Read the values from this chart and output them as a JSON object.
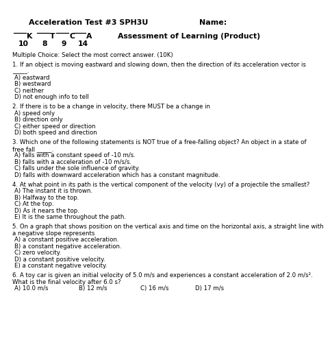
{
  "title1": "Acceleration Test #3 SPH3U",
  "title1_name": "Name:",
  "header_right": "Assessment of Learning (Product)",
  "ktca_labels": [
    "K",
    "T",
    "C",
    "A"
  ],
  "ktca_scores": [
    "10",
    "8",
    "9",
    "14"
  ],
  "mc_header": "Multiple Choice: Select the most correct answer. (10K)",
  "questions": [
    {
      "num": "1.",
      "text": "If an object is moving eastward and slowing down, then the direction of its acceleration vector is\n_____.",
      "choices": [
        "A) eastward",
        "B) westward",
        "C) neither",
        "D) not enough info to tell"
      ]
    },
    {
      "num": "2.",
      "text": "If there is to be a change in velocity, there MUST be a change in",
      "choices": [
        "A) speed only",
        "B) direction only",
        "C) either speed or direction",
        "D) both speed and direction"
      ]
    },
    {
      "num": "3.",
      "text": "Which one of the following statements is NOT true of a free-falling object? An object in a state of\nfree fall _____.",
      "choices": [
        "A) falls with a constant speed of -10 m/s.",
        "B) falls with a acceleration of -10 m/s/s.",
        "C) falls under the sole influence of gravity.",
        "D) falls with downward acceleration which has a constant magnitude."
      ]
    },
    {
      "num": "4.",
      "text": "At what point in its path is the vertical component of the velocity (vy) of a projectile the smallest?",
      "choices": [
        "A) The instant it is thrown.",
        "B) Halfway to the top.",
        "C) At the top.",
        "D) As it nears the top.",
        "E) It is the same throughout the path."
      ]
    },
    {
      "num": "5.",
      "text": "On a graph that shows position on the vertical axis and time on the horizontal axis, a straight line with\na negative slope represents",
      "choices": [
        "A) a constant positive acceleration.",
        "B) a constant negative acceleration.",
        "C) zero velocity.",
        "D) a constant positive velocity.",
        "E) a constant negative velocity."
      ]
    },
    {
      "num": "6.",
      "text": "A toy car is given an initial velocity of 5.0 m/s and experiences a constant acceleration of 2.0 m/s².\nWhat is the final velocity after 6.0 s?",
      "choices_inline": [
        "A) 10.0 m/s",
        "B) 12 m/s",
        "C) 16 m/s",
        "D) 17 m/s"
      ]
    }
  ],
  "bg_color": "#ffffff",
  "text_color": "#000000",
  "font_size": 6.2,
  "title_font_size": 8.0,
  "header_font_size": 7.8
}
